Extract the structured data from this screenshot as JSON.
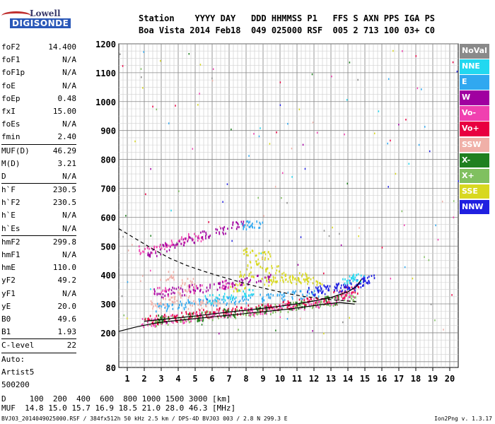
{
  "logo": {
    "line1": "Lowell",
    "line2": "DIGISONDE"
  },
  "header": {
    "line1": "Station    YYYY DAY   DDD HHMMSS P1   FFS S AXN PPS IGA PS",
    "line2": "Boa Vista 2014 Feb18  049 025000 RSF  005 2 713 100 03+ C0"
  },
  "params": [
    {
      "k": "foF2",
      "v": "14.400"
    },
    {
      "k": "foF1",
      "v": "N/A"
    },
    {
      "k": "foF1p",
      "v": "N/A"
    },
    {
      "k": "foE",
      "v": "N/A"
    },
    {
      "k": "foEp",
      "v": "0.48"
    },
    {
      "k": "fxI",
      "v": "15.00"
    },
    {
      "k": "foEs",
      "v": "N/A"
    },
    {
      "k": "fmin",
      "v": "2.40"
    },
    {
      "sep": true
    },
    {
      "k": "MUF(D)",
      "v": "46.29"
    },
    {
      "k": "M(D)",
      "v": "3.21"
    },
    {
      "k": "D",
      "v": "N/A"
    },
    {
      "sep": true
    },
    {
      "k": "h`F",
      "v": "230.5"
    },
    {
      "k": "h`F2",
      "v": "230.5"
    },
    {
      "k": "h`E",
      "v": "N/A"
    },
    {
      "k": "h`Es",
      "v": "N/A"
    },
    {
      "sep": true
    },
    {
      "k": "hmF2",
      "v": "299.8"
    },
    {
      "k": "hmF1",
      "v": "N/A"
    },
    {
      "k": "hmE",
      "v": "110.0"
    },
    {
      "k": "yF2",
      "v": "49.2"
    },
    {
      "k": "yF1",
      "v": "N/A"
    },
    {
      "k": "yE",
      "v": "20.0"
    },
    {
      "k": "B0",
      "v": "49.6"
    },
    {
      "k": "B1",
      "v": "1.93"
    },
    {
      "sep": true
    },
    {
      "k": "C-level",
      "v": "22"
    },
    {
      "sep": true
    },
    {
      "k": "Auto:",
      "v": ""
    },
    {
      "k": "Artist5",
      "v": ""
    },
    {
      "k": "500200",
      "v": ""
    }
  ],
  "legend": [
    {
      "label": "NoVal",
      "color": "#8a8a8a"
    },
    {
      "label": "NNE",
      "color": "#22d8f0"
    },
    {
      "label": "E",
      "color": "#30a8f0"
    },
    {
      "label": "W",
      "color": "#a000a0"
    },
    {
      "label": "Vo-",
      "color": "#f040b0"
    },
    {
      "label": "Vo+",
      "color": "#e80040"
    },
    {
      "label": "SSW",
      "color": "#f0b0a8"
    },
    {
      "label": "X-",
      "color": "#208020"
    },
    {
      "label": "X+",
      "color": "#80c060"
    },
    {
      "label": "SSE",
      "color": "#d8d820"
    },
    {
      "label": "NNW",
      "color": "#2020e0"
    }
  ],
  "footer": {
    "line1": "D     100  200  400  600  800 1000 1500 3000 [km]",
    "line2": "MUF  14.8 15.0 15.7 16.9 18.5 21.0 28.0 46.3 [MHz]",
    "note": "BVJ03_2014049025000.RSF / 384fx512h 50 kHz 2.5 km / DPS-4D BVJ03 003 / 2.8 N 299.3 E",
    "version": "Ion2Png v. 1.3.17"
  },
  "chart_data": {
    "type": "scatter",
    "xlim": [
      0.5,
      20.5
    ],
    "ylim": [
      80,
      1200
    ],
    "x_ticks": [
      1,
      2,
      3,
      4,
      5,
      6,
      7,
      8,
      9,
      10,
      11,
      12,
      13,
      14,
      15,
      16,
      17,
      18,
      19,
      20
    ],
    "y_ticks": [
      80,
      200,
      300,
      400,
      500,
      600,
      700,
      800,
      900,
      1000,
      1100,
      1200
    ],
    "grid": true,
    "series": [
      {
        "name": "X+",
        "color": "#80c060",
        "points": [
          [
            2.5,
            240
          ],
          [
            3,
            245
          ],
          [
            4,
            250
          ],
          [
            5,
            255
          ],
          [
            6,
            262
          ],
          [
            7,
            268
          ],
          [
            8,
            275
          ],
          [
            9,
            282
          ],
          [
            10,
            288
          ],
          [
            11,
            295
          ],
          [
            12,
            302
          ],
          [
            13,
            312
          ],
          [
            14,
            325
          ]
        ]
      },
      {
        "name": "Vo-",
        "color": "#f040b0",
        "points": [
          [
            2.2,
            238
          ],
          [
            3,
            246
          ],
          [
            4,
            252
          ],
          [
            5,
            258
          ],
          [
            6,
            264
          ],
          [
            7,
            270
          ],
          [
            8,
            276
          ],
          [
            9,
            283
          ],
          [
            10,
            290
          ],
          [
            11,
            297
          ],
          [
            12,
            305
          ],
          [
            13,
            316
          ],
          [
            14,
            330
          ],
          [
            3,
            345
          ],
          [
            5,
            355
          ],
          [
            7,
            368
          ],
          [
            2,
            490
          ],
          [
            3,
            500
          ],
          [
            4,
            520
          ],
          [
            5,
            535
          ]
        ]
      },
      {
        "name": "Vo+",
        "color": "#e80040",
        "points": [
          [
            2.4,
            248
          ],
          [
            3.5,
            255
          ],
          [
            4.5,
            262
          ],
          [
            5.5,
            268
          ],
          [
            6.5,
            274
          ],
          [
            7.5,
            280
          ],
          [
            8.5,
            286
          ],
          [
            9.5,
            293
          ],
          [
            10.5,
            300
          ],
          [
            11.5,
            308
          ],
          [
            12.5,
            318
          ],
          [
            13.5,
            335
          ],
          [
            14.2,
            350
          ]
        ]
      },
      {
        "name": "W",
        "color": "#a000a0",
        "points": [
          [
            3,
            340
          ],
          [
            4,
            348
          ],
          [
            5,
            355
          ],
          [
            6,
            362
          ],
          [
            7,
            370
          ],
          [
            8,
            380
          ],
          [
            9,
            390
          ],
          [
            2.5,
            480
          ],
          [
            3.5,
            500
          ],
          [
            4.5,
            520
          ],
          [
            5.5,
            540
          ],
          [
            6.5,
            555
          ],
          [
            7.5,
            575
          ]
        ]
      },
      {
        "name": "E",
        "color": "#30a8f0",
        "points": [
          [
            3,
            290
          ],
          [
            4,
            300
          ],
          [
            5,
            305
          ],
          [
            6,
            310
          ],
          [
            7,
            315
          ],
          [
            8,
            320
          ],
          [
            9,
            325
          ],
          [
            10,
            330
          ],
          [
            11,
            335
          ],
          [
            12,
            342
          ],
          [
            8,
            575
          ],
          [
            8.5,
            580
          ]
        ]
      },
      {
        "name": "SSE",
        "color": "#d8d820",
        "points": [
          [
            7.5,
            360
          ],
          [
            8,
            410
          ],
          [
            8.5,
            440
          ],
          [
            9,
            470
          ],
          [
            9.5,
            420
          ],
          [
            10,
            390
          ],
          [
            10.5,
            400
          ],
          [
            11,
            385
          ],
          [
            11.5,
            395
          ],
          [
            12,
            380
          ],
          [
            8.2,
            480
          ],
          [
            9.2,
            380
          ]
        ]
      },
      {
        "name": "NNW",
        "color": "#2020e0",
        "points": [
          [
            12,
            345
          ],
          [
            12.5,
            350
          ],
          [
            13,
            355
          ],
          [
            13.5,
            360
          ],
          [
            14,
            365
          ],
          [
            14.5,
            372
          ],
          [
            15,
            380
          ],
          [
            15.3,
            390
          ]
        ]
      },
      {
        "name": "SSW",
        "color": "#f0b0a8",
        "points": [
          [
            2.8,
            300
          ],
          [
            3.5,
            320
          ],
          [
            4.2,
            340
          ],
          [
            5,
            300
          ],
          [
            6,
            310
          ],
          [
            3.3,
            400
          ],
          [
            4.5,
            380
          ]
        ]
      },
      {
        "name": "X-",
        "color": "#208020",
        "points": [
          [
            3,
            250
          ],
          [
            5,
            258
          ],
          [
            7,
            270
          ],
          [
            9,
            284
          ],
          [
            11,
            298
          ],
          [
            13,
            315
          ]
        ]
      },
      {
        "name": "NNE",
        "color": "#22d8f0",
        "points": [
          [
            6,
            320
          ],
          [
            7,
            330
          ],
          [
            8,
            340
          ],
          [
            14,
            388
          ],
          [
            14.5,
            392
          ]
        ]
      }
    ],
    "curves": [
      {
        "name": "profile",
        "color": "#000",
        "dash": false,
        "points": [
          [
            0.5,
            205
          ],
          [
            1.5,
            220
          ],
          [
            2.5,
            232
          ],
          [
            3.5,
            240
          ],
          [
            4.5,
            246
          ],
          [
            5.5,
            252
          ],
          [
            6.5,
            258
          ],
          [
            7.5,
            264
          ],
          [
            8.5,
            270
          ],
          [
            9.5,
            276
          ],
          [
            10.5,
            282
          ],
          [
            11.5,
            290
          ],
          [
            12.5,
            298
          ],
          [
            13.5,
            305
          ],
          [
            14.4,
            299
          ]
        ]
      },
      {
        "name": "trace",
        "color": "#000",
        "dash": false,
        "points": [
          [
            2,
            240
          ],
          [
            3,
            246
          ],
          [
            4,
            252
          ],
          [
            5,
            258
          ],
          [
            6,
            265
          ],
          [
            7,
            272
          ],
          [
            8,
            278
          ],
          [
            9,
            285
          ],
          [
            10,
            292
          ],
          [
            11,
            300
          ],
          [
            12,
            310
          ],
          [
            13,
            322
          ],
          [
            14,
            342
          ],
          [
            14.5,
            360
          ],
          [
            14.8,
            385
          ]
        ]
      },
      {
        "name": "MUF",
        "color": "#000",
        "dash": true,
        "points": [
          [
            0.5,
            560
          ],
          [
            1.5,
            525
          ],
          [
            2.5,
            490
          ],
          [
            3.5,
            458
          ],
          [
            4.5,
            433
          ],
          [
            5.5,
            413
          ],
          [
            6.5,
            395
          ],
          [
            7.5,
            378
          ],
          [
            8.5,
            362
          ],
          [
            9.5,
            348
          ],
          [
            10.5,
            335
          ],
          [
            11.5,
            325
          ],
          [
            12.5,
            318
          ],
          [
            13.5,
            312
          ],
          [
            14.5,
            308
          ]
        ]
      }
    ]
  }
}
